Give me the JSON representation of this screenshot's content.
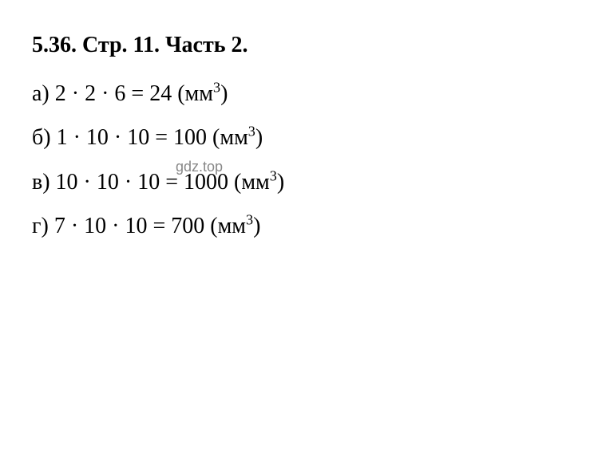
{
  "heading": {
    "problem_number": "5.36.",
    "page_label": "Стр.",
    "page_number": "11.",
    "part_label": "Часть",
    "part_number": "2."
  },
  "equations": [
    {
      "label": "а)",
      "factors": [
        "2",
        "2",
        "6"
      ],
      "result": "24",
      "unit_base": "мм",
      "unit_exponent": "3"
    },
    {
      "label": "б)",
      "factors": [
        "1",
        "10",
        "10"
      ],
      "result": "100",
      "unit_base": "мм",
      "unit_exponent": "3"
    },
    {
      "label": "в)",
      "factors": [
        "10",
        "10",
        "10"
      ],
      "result": "1000",
      "unit_base": "мм",
      "unit_exponent": "3"
    },
    {
      "label": "г)",
      "factors": [
        "7",
        "10",
        "10"
      ],
      "result": "700",
      "unit_base": "мм",
      "unit_exponent": "3"
    }
  ],
  "watermark": "gdz.top",
  "styling": {
    "font_family": "Times New Roman",
    "font_size_pt": 28,
    "heading_weight": "bold",
    "text_color": "#000000",
    "background_color": "#ffffff",
    "watermark_color": "#888888",
    "watermark_font_size": 18,
    "line_height": 1.9,
    "multiply_symbol": "·",
    "equals_symbol": "="
  }
}
